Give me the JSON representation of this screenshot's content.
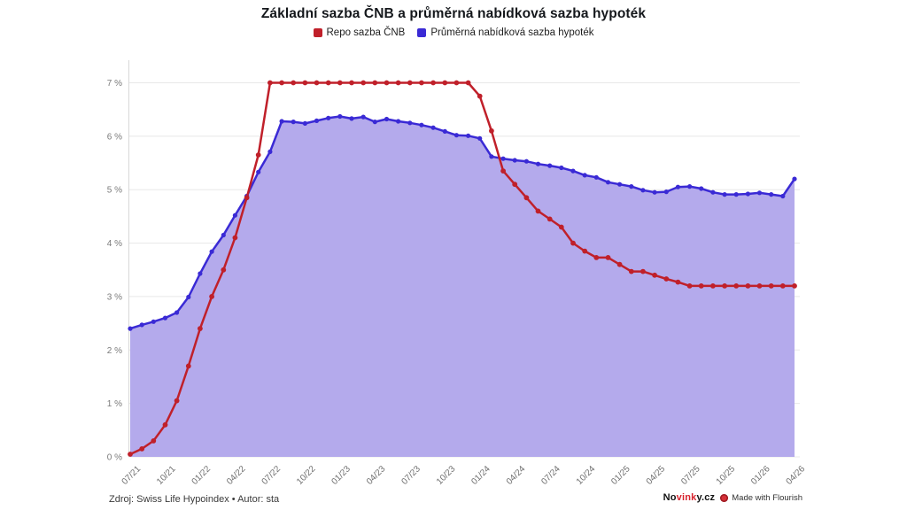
{
  "title": "Základní sazba ČNB a průměrná nabídková sazba hypoték",
  "legend": [
    {
      "label": "Repo sazba ČNB",
      "color": "#c0202a"
    },
    {
      "label": "Průměrná nabídková sazba hypoték",
      "color": "#3a2ad5"
    }
  ],
  "footer": {
    "source": "Zdroj: Swiss Life Hypoindex • Autor: sta",
    "brand": {
      "prefix": "No",
      "highlight": "vink",
      "suffix": "y.cz"
    },
    "credit": "Made with Flourish"
  },
  "chart_data": {
    "type": "line",
    "title": "Základní sazba ČNB a průměrná nabídková sazba hypoték",
    "categories": [
      "07/21",
      "08/21",
      "09/21",
      "10/21",
      "11/21",
      "12/21",
      "01/22",
      "02/22",
      "03/22",
      "04/22",
      "05/22",
      "06/22",
      "07/22",
      "08/22",
      "09/22",
      "10/22",
      "11/22",
      "12/22",
      "01/23",
      "02/23",
      "03/23",
      "04/23",
      "05/23",
      "06/23",
      "07/23",
      "08/23",
      "09/23",
      "10/23",
      "11/23",
      "12/23",
      "01/24",
      "02/24",
      "03/24",
      "04/24",
      "05/24",
      "06/24",
      "07/24",
      "08/24",
      "09/24",
      "10/24",
      "11/24",
      "12/24",
      "01/25",
      "02/25",
      "03/25",
      "04/25",
      "05/25",
      "06/25",
      "07/25",
      "08/25",
      "09/25",
      "10/25",
      "11/25",
      "12/25",
      "01/26",
      "02/26",
      "03/26",
      "04/26"
    ],
    "tick_every": 3,
    "ylim": [
      0,
      7
    ],
    "y_ticks": [
      "0 %",
      "1 %",
      "2 %",
      "3 %",
      "4 %",
      "5 %",
      "6 %",
      "7 %"
    ],
    "grid": true,
    "legend_position": "top",
    "series": [
      {
        "name": "Repo sazba ČNB",
        "color": "#c0202a",
        "values": [
          0.05,
          0.15,
          0.3,
          0.6,
          1.05,
          1.7,
          2.4,
          3.0,
          3.5,
          4.1,
          4.85,
          5.65,
          7.0,
          7.0,
          7.0,
          7.0,
          7.0,
          7.0,
          7.0,
          7.0,
          7.0,
          7.0,
          7.0,
          7.0,
          7.0,
          7.0,
          7.0,
          7.0,
          7.0,
          7.0,
          6.75,
          6.1,
          5.35,
          5.1,
          4.85,
          4.6,
          4.45,
          4.3,
          4.0,
          3.85,
          3.73,
          3.73,
          3.6,
          3.47,
          3.47,
          3.4,
          3.33,
          3.27,
          3.2,
          3.2,
          3.2,
          3.2,
          3.2,
          3.2,
          3.2,
          3.2,
          3.2,
          3.2
        ]
      },
      {
        "name": "Průměrná nabídková sazba hypoték",
        "color": "#3a2ad5",
        "fill": "#b4aaec",
        "area": true,
        "values": [
          2.4,
          2.47,
          2.53,
          2.6,
          2.7,
          2.99,
          3.43,
          3.84,
          4.15,
          4.52,
          4.88,
          5.33,
          5.71,
          6.28,
          6.27,
          6.24,
          6.29,
          6.34,
          6.37,
          6.33,
          6.36,
          6.27,
          6.32,
          6.28,
          6.25,
          6.21,
          6.16,
          6.09,
          6.02,
          6.01,
          5.96,
          5.62,
          5.58,
          5.55,
          5.53,
          5.48,
          5.45,
          5.41,
          5.35,
          5.27,
          5.23,
          5.14,
          5.1,
          5.06,
          4.99,
          4.95,
          4.96,
          5.05,
          5.06,
          5.02,
          4.95,
          4.91,
          4.91,
          4.92,
          4.94,
          4.91,
          4.88,
          5.2
        ]
      }
    ],
    "colors": {
      "grid": "#e8e8e8",
      "axis": "#d8d8d8"
    }
  }
}
